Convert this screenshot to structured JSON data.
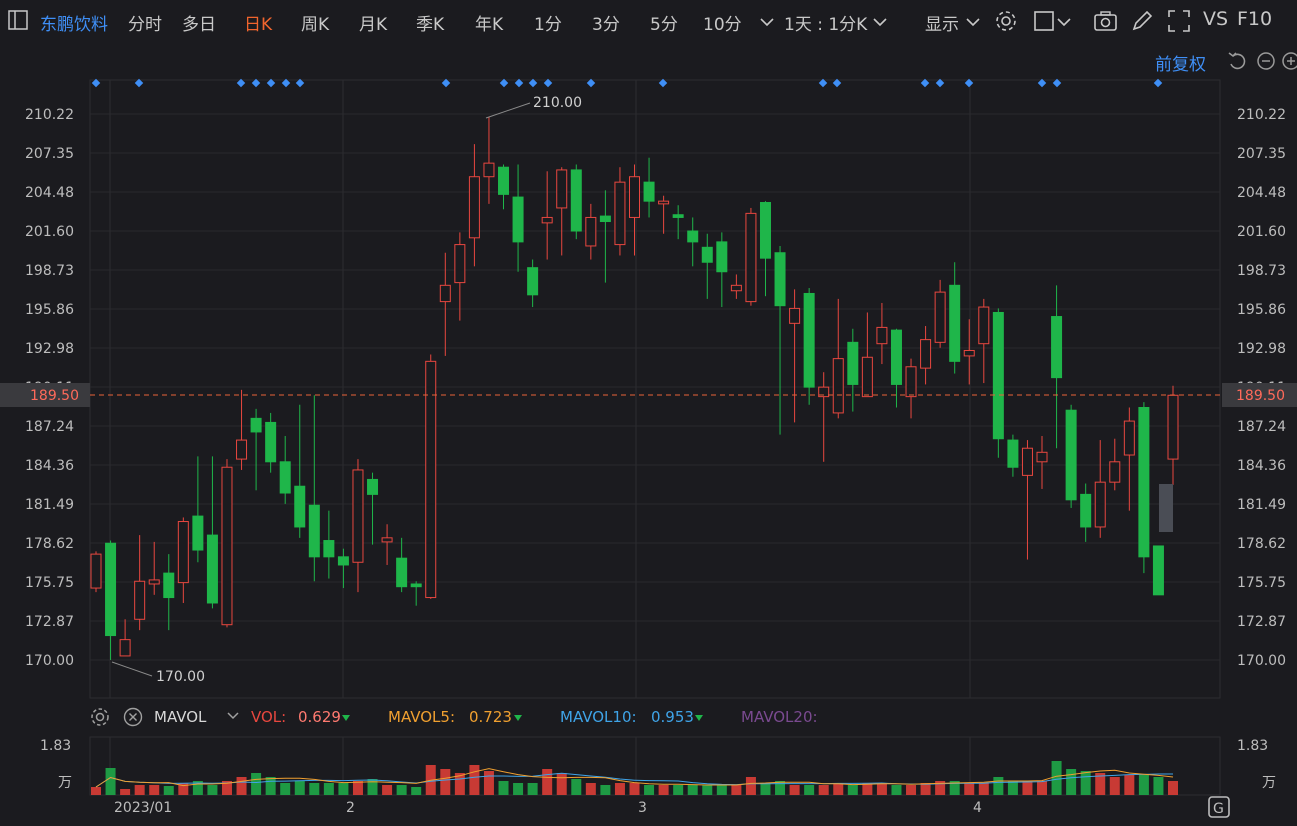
{
  "toolbar": {
    "stock_name": "东鹏饮料",
    "periods": [
      "分时",
      "多日",
      "日K",
      "周K",
      "月K",
      "季K",
      "年K",
      "1分",
      "3分",
      "5分",
      "10分"
    ],
    "active_period": "日K",
    "range_select": "1天 : 1分K",
    "display_label": "显示",
    "vs_label": "VS",
    "f10_label": "F10"
  },
  "adjust_label": "前复权",
  "price_axis": {
    "ticks": [
      "210.22",
      "207.35",
      "204.48",
      "201.60",
      "198.73",
      "195.86",
      "192.98",
      "190.11",
      "187.24",
      "184.36",
      "181.49",
      "178.62",
      "175.75",
      "172.87",
      "170.00"
    ],
    "current_price": "189.50",
    "max_label": "210.00",
    "min_label": "170.00"
  },
  "volume_axis": {
    "top": "1.83",
    "unit": "万"
  },
  "date_labels": [
    "2023/01",
    "2",
    "3",
    "4"
  ],
  "indicator": {
    "name": "MAVOL",
    "vol_label": "VOL:",
    "vol_value": "0.629",
    "ma5_label": "MAVOL5:",
    "ma5_value": "0.723",
    "ma10_label": "MAVOL10:",
    "ma10_value": "0.953",
    "ma20_label": "MAVOL20:"
  },
  "colors": {
    "up": "#e8473f",
    "down": "#1fb64a",
    "ma5": "#f0a030",
    "ma10": "#3fa4e8",
    "ma20": "#7a4a90",
    "accent": "#3f8ff6",
    "current": "#f0642d"
  },
  "chart_data": {
    "type": "candlestick",
    "ylim": [
      170.0,
      210.22
    ],
    "candles": [
      {
        "o": 175.3,
        "c": 177.8,
        "h": 178.0,
        "l": 175.0
      },
      {
        "o": 178.6,
        "c": 171.8,
        "h": 178.8,
        "l": 170.0
      },
      {
        "o": 170.3,
        "c": 171.5,
        "h": 173.0,
        "l": 170.3
      },
      {
        "o": 173.0,
        "c": 175.8,
        "h": 179.2,
        "l": 172.2
      },
      {
        "o": 175.6,
        "c": 175.9,
        "h": 178.7,
        "l": 174.8
      },
      {
        "o": 176.4,
        "c": 174.6,
        "h": 177.8,
        "l": 172.2
      },
      {
        "o": 175.7,
        "c": 180.2,
        "h": 180.5,
        "l": 174.2
      },
      {
        "o": 180.6,
        "c": 178.1,
        "h": 185.0,
        "l": 177.2
      },
      {
        "o": 179.2,
        "c": 174.2,
        "h": 185.0,
        "l": 173.8
      },
      {
        "o": 172.6,
        "c": 184.2,
        "h": 184.8,
        "l": 172.4
      },
      {
        "o": 184.8,
        "c": 186.2,
        "h": 189.9,
        "l": 184.0
      },
      {
        "o": 187.8,
        "c": 186.8,
        "h": 188.5,
        "l": 182.5
      },
      {
        "o": 187.5,
        "c": 184.6,
        "h": 188.2,
        "l": 183.8
      },
      {
        "o": 184.6,
        "c": 182.3,
        "h": 186.5,
        "l": 181.5
      },
      {
        "o": 182.8,
        "c": 179.8,
        "h": 188.8,
        "l": 179.0
      },
      {
        "o": 181.4,
        "c": 177.6,
        "h": 189.5,
        "l": 175.8
      },
      {
        "o": 178.8,
        "c": 177.6,
        "h": 181.0,
        "l": 176.0
      },
      {
        "o": 177.6,
        "c": 177.0,
        "h": 178.2,
        "l": 175.3
      },
      {
        "o": 177.2,
        "c": 184.0,
        "h": 184.8,
        "l": 175.0
      },
      {
        "o": 183.3,
        "c": 182.2,
        "h": 183.8,
        "l": 178.5
      },
      {
        "o": 178.7,
        "c": 179.0,
        "h": 180.0,
        "l": 177.0
      },
      {
        "o": 177.5,
        "c": 175.4,
        "h": 179.0,
        "l": 175.0
      },
      {
        "o": 175.6,
        "c": 175.4,
        "h": 175.8,
        "l": 174.0
      },
      {
        "o": 174.6,
        "c": 192.0,
        "h": 192.5,
        "l": 174.5
      },
      {
        "o": 196.4,
        "c": 197.6,
        "h": 200.0,
        "l": 192.4
      },
      {
        "o": 197.8,
        "c": 200.6,
        "h": 201.5,
        "l": 195.0
      },
      {
        "o": 201.1,
        "c": 205.6,
        "h": 208.0,
        "l": 199.0
      },
      {
        "o": 205.6,
        "c": 206.6,
        "h": 210.0,
        "l": 203.6
      },
      {
        "o": 206.3,
        "c": 204.3,
        "h": 206.5,
        "l": 203.2
      },
      {
        "o": 204.1,
        "c": 200.8,
        "h": 206.5,
        "l": 198.6
      },
      {
        "o": 198.9,
        "c": 196.9,
        "h": 199.5,
        "l": 196.0
      },
      {
        "o": 202.2,
        "c": 202.6,
        "h": 206.0,
        "l": 199.5
      },
      {
        "o": 203.3,
        "c": 206.1,
        "h": 206.3,
        "l": 199.8
      },
      {
        "o": 206.1,
        "c": 201.6,
        "h": 206.5,
        "l": 201.0
      },
      {
        "o": 200.5,
        "c": 202.6,
        "h": 203.6,
        "l": 199.5
      },
      {
        "o": 202.7,
        "c": 202.3,
        "h": 204.6,
        "l": 197.8
      },
      {
        "o": 200.6,
        "c": 205.2,
        "h": 206.3,
        "l": 199.8
      },
      {
        "o": 202.6,
        "c": 205.6,
        "h": 206.5,
        "l": 199.8
      },
      {
        "o": 205.2,
        "c": 203.8,
        "h": 207.0,
        "l": 202.6
      },
      {
        "o": 203.6,
        "c": 203.8,
        "h": 204.2,
        "l": 201.4
      },
      {
        "o": 202.8,
        "c": 202.6,
        "h": 203.5,
        "l": 201.0
      },
      {
        "o": 201.6,
        "c": 200.8,
        "h": 202.6,
        "l": 199.0
      },
      {
        "o": 200.4,
        "c": 199.3,
        "h": 201.4,
        "l": 196.6
      },
      {
        "o": 200.8,
        "c": 198.6,
        "h": 201.5,
        "l": 196.0
      },
      {
        "o": 197.2,
        "c": 197.6,
        "h": 198.4,
        "l": 196.6
      },
      {
        "o": 196.4,
        "c": 202.9,
        "h": 203.3,
        "l": 196.1
      },
      {
        "o": 203.7,
        "c": 199.6,
        "h": 203.8,
        "l": 196.8
      },
      {
        "o": 200.0,
        "c": 196.1,
        "h": 200.5,
        "l": 186.6
      },
      {
        "o": 194.8,
        "c": 195.9,
        "h": 197.3,
        "l": 187.5
      },
      {
        "o": 197.0,
        "c": 190.1,
        "h": 197.4,
        "l": 188.8
      },
      {
        "o": 189.4,
        "c": 190.1,
        "h": 191.2,
        "l": 184.6
      },
      {
        "o": 188.2,
        "c": 192.2,
        "h": 196.6,
        "l": 187.8
      },
      {
        "o": 193.4,
        "c": 190.3,
        "h": 194.4,
        "l": 188.3
      },
      {
        "o": 189.4,
        "c": 192.3,
        "h": 195.6,
        "l": 189.4
      },
      {
        "o": 193.3,
        "c": 194.5,
        "h": 196.3,
        "l": 191.8
      },
      {
        "o": 194.3,
        "c": 190.3,
        "h": 194.4,
        "l": 188.6
      },
      {
        "o": 189.4,
        "c": 191.6,
        "h": 192.2,
        "l": 187.8
      },
      {
        "o": 191.5,
        "c": 193.6,
        "h": 194.6,
        "l": 190.3
      },
      {
        "o": 193.4,
        "c": 197.1,
        "h": 198.0,
        "l": 193.0
      },
      {
        "o": 197.6,
        "c": 192.0,
        "h": 199.3,
        "l": 191.1
      },
      {
        "o": 192.4,
        "c": 192.8,
        "h": 195.1,
        "l": 190.3
      },
      {
        "o": 193.3,
        "c": 196.0,
        "h": 196.6,
        "l": 190.4
      },
      {
        "o": 195.6,
        "c": 186.3,
        "h": 195.9,
        "l": 184.9
      },
      {
        "o": 186.2,
        "c": 184.2,
        "h": 186.6,
        "l": 183.5
      },
      {
        "o": 183.6,
        "c": 185.6,
        "h": 186.2,
        "l": 177.4
      },
      {
        "o": 184.6,
        "c": 185.3,
        "h": 186.5,
        "l": 182.6
      },
      {
        "o": 195.3,
        "c": 190.8,
        "h": 197.6,
        "l": 185.6
      },
      {
        "o": 188.4,
        "c": 181.8,
        "h": 188.8,
        "l": 181.2
      },
      {
        "o": 182.2,
        "c": 179.8,
        "h": 183.0,
        "l": 178.7
      },
      {
        "o": 179.8,
        "c": 183.1,
        "h": 186.2,
        "l": 179.0
      },
      {
        "o": 183.1,
        "c": 184.6,
        "h": 186.3,
        "l": 182.5
      },
      {
        "o": 185.1,
        "c": 187.6,
        "h": 188.6,
        "l": 181.0
      },
      {
        "o": 188.6,
        "c": 177.6,
        "h": 189.0,
        "l": 176.4
      },
      {
        "o": 178.4,
        "c": 174.8,
        "h": 178.4,
        "l": 174.8
      },
      {
        "o": 184.8,
        "c": 189.5,
        "h": 190.2,
        "l": 182.9
      }
    ],
    "current_price": 189.5,
    "volume_ma5_value": 0.723,
    "volume_ma10_value": 0.953
  }
}
